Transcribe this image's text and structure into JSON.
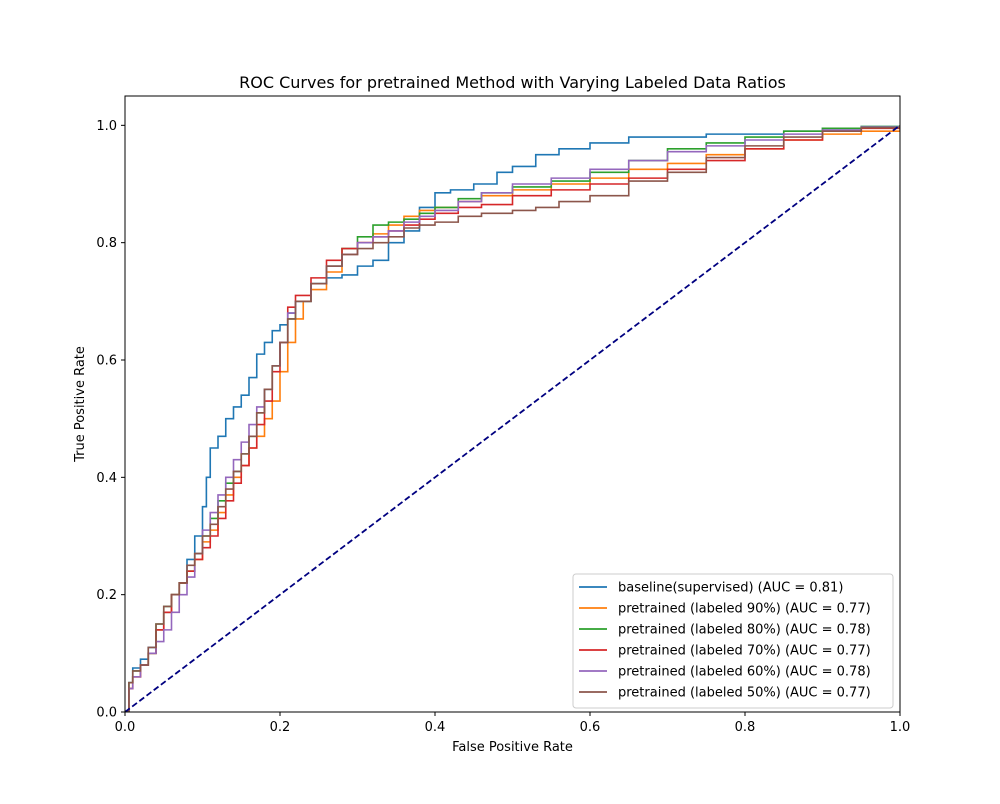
{
  "chart_data": {
    "type": "line",
    "title": "ROC Curves for pretrained Method with Varying Labeled Data Ratios",
    "xlabel": "False Positive Rate",
    "ylabel": "True Positive Rate",
    "xlim": [
      0.0,
      1.0
    ],
    "ylim": [
      0.0,
      1.05
    ],
    "xticks": [
      "0.0",
      "0.2",
      "0.4",
      "0.6",
      "0.8",
      "1.0"
    ],
    "yticks": [
      "0.0",
      "0.2",
      "0.4",
      "0.6",
      "0.8",
      "1.0"
    ],
    "grid": false,
    "legend_position": "lower-right",
    "diagonal": {
      "color": "#000080",
      "style": "dashed",
      "points": [
        [
          0,
          0
        ],
        [
          1,
          1
        ]
      ]
    },
    "series": [
      {
        "name": "baseline(supervised) (AUC = 0.81)",
        "color": "#1f77b4",
        "points": [
          [
            0,
            0
          ],
          [
            0.005,
            0.05
          ],
          [
            0.01,
            0.075
          ],
          [
            0.02,
            0.09
          ],
          [
            0.03,
            0.11
          ],
          [
            0.04,
            0.14
          ],
          [
            0.05,
            0.17
          ],
          [
            0.06,
            0.2
          ],
          [
            0.07,
            0.22
          ],
          [
            0.08,
            0.26
          ],
          [
            0.09,
            0.3
          ],
          [
            0.1,
            0.35
          ],
          [
            0.105,
            0.4
          ],
          [
            0.11,
            0.45
          ],
          [
            0.12,
            0.47
          ],
          [
            0.13,
            0.5
          ],
          [
            0.14,
            0.52
          ],
          [
            0.15,
            0.54
          ],
          [
            0.16,
            0.57
          ],
          [
            0.17,
            0.61
          ],
          [
            0.18,
            0.63
          ],
          [
            0.19,
            0.65
          ],
          [
            0.2,
            0.66
          ],
          [
            0.21,
            0.68
          ],
          [
            0.22,
            0.7
          ],
          [
            0.24,
            0.73
          ],
          [
            0.26,
            0.74
          ],
          [
            0.28,
            0.745
          ],
          [
            0.3,
            0.76
          ],
          [
            0.32,
            0.77
          ],
          [
            0.34,
            0.8
          ],
          [
            0.36,
            0.82
          ],
          [
            0.38,
            0.86
          ],
          [
            0.4,
            0.885
          ],
          [
            0.42,
            0.89
          ],
          [
            0.45,
            0.9
          ],
          [
            0.48,
            0.92
          ],
          [
            0.5,
            0.93
          ],
          [
            0.53,
            0.95
          ],
          [
            0.56,
            0.96
          ],
          [
            0.6,
            0.97
          ],
          [
            0.65,
            0.98
          ],
          [
            0.7,
            0.98
          ],
          [
            0.75,
            0.985
          ],
          [
            0.8,
            0.985
          ],
          [
            0.85,
            0.99
          ],
          [
            0.9,
            0.995
          ],
          [
            0.95,
            0.998
          ],
          [
            1,
            1
          ]
        ]
      },
      {
        "name": "pretrained (labeled 90%) (AUC = 0.77)",
        "color": "#ff7f0e",
        "points": [
          [
            0,
            0
          ],
          [
            0.005,
            0.04
          ],
          [
            0.01,
            0.06
          ],
          [
            0.02,
            0.08
          ],
          [
            0.03,
            0.1
          ],
          [
            0.04,
            0.14
          ],
          [
            0.05,
            0.17
          ],
          [
            0.06,
            0.2
          ],
          [
            0.07,
            0.22
          ],
          [
            0.08,
            0.24
          ],
          [
            0.09,
            0.26
          ],
          [
            0.1,
            0.29
          ],
          [
            0.11,
            0.31
          ],
          [
            0.12,
            0.34
          ],
          [
            0.13,
            0.37
          ],
          [
            0.14,
            0.4
          ],
          [
            0.15,
            0.42
          ],
          [
            0.16,
            0.45
          ],
          [
            0.17,
            0.47
          ],
          [
            0.18,
            0.5
          ],
          [
            0.19,
            0.53
          ],
          [
            0.2,
            0.58
          ],
          [
            0.21,
            0.63
          ],
          [
            0.22,
            0.67
          ],
          [
            0.23,
            0.7
          ],
          [
            0.24,
            0.72
          ],
          [
            0.26,
            0.75
          ],
          [
            0.28,
            0.78
          ],
          [
            0.3,
            0.8
          ],
          [
            0.32,
            0.815
          ],
          [
            0.34,
            0.83
          ],
          [
            0.36,
            0.845
          ],
          [
            0.38,
            0.855
          ],
          [
            0.4,
            0.86
          ],
          [
            0.43,
            0.87
          ],
          [
            0.46,
            0.88
          ],
          [
            0.5,
            0.89
          ],
          [
            0.55,
            0.9
          ],
          [
            0.6,
            0.91
          ],
          [
            0.65,
            0.925
          ],
          [
            0.7,
            0.935
          ],
          [
            0.75,
            0.95
          ],
          [
            0.8,
            0.96
          ],
          [
            0.85,
            0.975
          ],
          [
            0.9,
            0.985
          ],
          [
            0.95,
            0.99
          ],
          [
            1,
            1
          ]
        ]
      },
      {
        "name": "pretrained (labeled 80%) (AUC = 0.78)",
        "color": "#2ca02c",
        "points": [
          [
            0,
            0
          ],
          [
            0.005,
            0.05
          ],
          [
            0.01,
            0.07
          ],
          [
            0.02,
            0.08
          ],
          [
            0.03,
            0.1
          ],
          [
            0.04,
            0.15
          ],
          [
            0.05,
            0.18
          ],
          [
            0.06,
            0.2
          ],
          [
            0.07,
            0.22
          ],
          [
            0.08,
            0.24
          ],
          [
            0.09,
            0.27
          ],
          [
            0.1,
            0.3
          ],
          [
            0.11,
            0.33
          ],
          [
            0.12,
            0.36
          ],
          [
            0.13,
            0.39
          ],
          [
            0.14,
            0.41
          ],
          [
            0.15,
            0.44
          ],
          [
            0.16,
            0.47
          ],
          [
            0.17,
            0.51
          ],
          [
            0.18,
            0.55
          ],
          [
            0.19,
            0.59
          ],
          [
            0.2,
            0.63
          ],
          [
            0.21,
            0.67
          ],
          [
            0.22,
            0.7
          ],
          [
            0.24,
            0.73
          ],
          [
            0.26,
            0.76
          ],
          [
            0.28,
            0.79
          ],
          [
            0.3,
            0.81
          ],
          [
            0.32,
            0.83
          ],
          [
            0.34,
            0.835
          ],
          [
            0.36,
            0.84
          ],
          [
            0.38,
            0.85
          ],
          [
            0.4,
            0.86
          ],
          [
            0.43,
            0.875
          ],
          [
            0.46,
            0.885
          ],
          [
            0.5,
            0.895
          ],
          [
            0.55,
            0.905
          ],
          [
            0.6,
            0.92
          ],
          [
            0.65,
            0.94
          ],
          [
            0.7,
            0.96
          ],
          [
            0.75,
            0.97
          ],
          [
            0.8,
            0.98
          ],
          [
            0.85,
            0.99
          ],
          [
            0.9,
            0.995
          ],
          [
            0.95,
            0.998
          ],
          [
            1,
            1
          ]
        ]
      },
      {
        "name": "pretrained (labeled 70%) (AUC = 0.77)",
        "color": "#d62728",
        "points": [
          [
            0,
            0
          ],
          [
            0.005,
            0.04
          ],
          [
            0.01,
            0.06
          ],
          [
            0.02,
            0.08
          ],
          [
            0.03,
            0.1
          ],
          [
            0.04,
            0.14
          ],
          [
            0.05,
            0.17
          ],
          [
            0.06,
            0.2
          ],
          [
            0.07,
            0.22
          ],
          [
            0.08,
            0.24
          ],
          [
            0.09,
            0.26
          ],
          [
            0.1,
            0.28
          ],
          [
            0.11,
            0.3
          ],
          [
            0.12,
            0.33
          ],
          [
            0.13,
            0.36
          ],
          [
            0.14,
            0.39
          ],
          [
            0.15,
            0.42
          ],
          [
            0.16,
            0.45
          ],
          [
            0.17,
            0.49
          ],
          [
            0.18,
            0.53
          ],
          [
            0.19,
            0.58
          ],
          [
            0.2,
            0.63
          ],
          [
            0.21,
            0.69
          ],
          [
            0.22,
            0.71
          ],
          [
            0.24,
            0.74
          ],
          [
            0.26,
            0.77
          ],
          [
            0.28,
            0.79
          ],
          [
            0.3,
            0.8
          ],
          [
            0.32,
            0.81
          ],
          [
            0.34,
            0.82
          ],
          [
            0.36,
            0.83
          ],
          [
            0.38,
            0.84
          ],
          [
            0.4,
            0.85
          ],
          [
            0.43,
            0.86
          ],
          [
            0.46,
            0.865
          ],
          [
            0.5,
            0.88
          ],
          [
            0.55,
            0.89
          ],
          [
            0.6,
            0.9
          ],
          [
            0.65,
            0.91
          ],
          [
            0.7,
            0.925
          ],
          [
            0.75,
            0.94
          ],
          [
            0.8,
            0.96
          ],
          [
            0.85,
            0.975
          ],
          [
            0.9,
            0.99
          ],
          [
            0.95,
            0.995
          ],
          [
            1,
            1
          ]
        ]
      },
      {
        "name": "pretrained (labeled 60%) (AUC = 0.78)",
        "color": "#9467bd",
        "points": [
          [
            0,
            0
          ],
          [
            0.005,
            0.04
          ],
          [
            0.01,
            0.06
          ],
          [
            0.02,
            0.08
          ],
          [
            0.03,
            0.1
          ],
          [
            0.04,
            0.12
          ],
          [
            0.05,
            0.14
          ],
          [
            0.06,
            0.17
          ],
          [
            0.07,
            0.2
          ],
          [
            0.08,
            0.23
          ],
          [
            0.09,
            0.27
          ],
          [
            0.1,
            0.31
          ],
          [
            0.11,
            0.34
          ],
          [
            0.12,
            0.37
          ],
          [
            0.13,
            0.4
          ],
          [
            0.14,
            0.43
          ],
          [
            0.15,
            0.46
          ],
          [
            0.16,
            0.49
          ],
          [
            0.17,
            0.52
          ],
          [
            0.18,
            0.55
          ],
          [
            0.19,
            0.59
          ],
          [
            0.2,
            0.63
          ],
          [
            0.21,
            0.68
          ],
          [
            0.22,
            0.7
          ],
          [
            0.24,
            0.73
          ],
          [
            0.26,
            0.76
          ],
          [
            0.28,
            0.78
          ],
          [
            0.3,
            0.8
          ],
          [
            0.32,
            0.81
          ],
          [
            0.34,
            0.82
          ],
          [
            0.36,
            0.835
          ],
          [
            0.38,
            0.845
          ],
          [
            0.4,
            0.855
          ],
          [
            0.43,
            0.87
          ],
          [
            0.46,
            0.885
          ],
          [
            0.5,
            0.9
          ],
          [
            0.55,
            0.91
          ],
          [
            0.6,
            0.925
          ],
          [
            0.65,
            0.94
          ],
          [
            0.7,
            0.955
          ],
          [
            0.75,
            0.965
          ],
          [
            0.8,
            0.975
          ],
          [
            0.85,
            0.985
          ],
          [
            0.9,
            0.992
          ],
          [
            0.95,
            0.997
          ],
          [
            1,
            1
          ]
        ]
      },
      {
        "name": "pretrained (labeled 50%) (AUC = 0.77)",
        "color": "#8c564b",
        "points": [
          [
            0,
            0
          ],
          [
            0.005,
            0.05
          ],
          [
            0.01,
            0.07
          ],
          [
            0.02,
            0.08
          ],
          [
            0.03,
            0.11
          ],
          [
            0.04,
            0.15
          ],
          [
            0.05,
            0.18
          ],
          [
            0.06,
            0.2
          ],
          [
            0.07,
            0.22
          ],
          [
            0.08,
            0.25
          ],
          [
            0.09,
            0.27
          ],
          [
            0.1,
            0.3
          ],
          [
            0.11,
            0.32
          ],
          [
            0.12,
            0.35
          ],
          [
            0.13,
            0.38
          ],
          [
            0.14,
            0.41
          ],
          [
            0.15,
            0.44
          ],
          [
            0.16,
            0.47
          ],
          [
            0.17,
            0.51
          ],
          [
            0.18,
            0.55
          ],
          [
            0.19,
            0.59
          ],
          [
            0.2,
            0.63
          ],
          [
            0.21,
            0.67
          ],
          [
            0.22,
            0.7
          ],
          [
            0.24,
            0.73
          ],
          [
            0.26,
            0.76
          ],
          [
            0.28,
            0.78
          ],
          [
            0.3,
            0.79
          ],
          [
            0.32,
            0.8
          ],
          [
            0.34,
            0.81
          ],
          [
            0.36,
            0.825
          ],
          [
            0.38,
            0.83
          ],
          [
            0.4,
            0.835
          ],
          [
            0.43,
            0.845
          ],
          [
            0.46,
            0.85
          ],
          [
            0.5,
            0.855
          ],
          [
            0.53,
            0.86
          ],
          [
            0.56,
            0.87
          ],
          [
            0.6,
            0.88
          ],
          [
            0.65,
            0.905
          ],
          [
            0.7,
            0.92
          ],
          [
            0.75,
            0.945
          ],
          [
            0.8,
            0.965
          ],
          [
            0.85,
            0.98
          ],
          [
            0.9,
            0.99
          ],
          [
            0.95,
            0.996
          ],
          [
            1,
            1
          ]
        ]
      }
    ]
  }
}
